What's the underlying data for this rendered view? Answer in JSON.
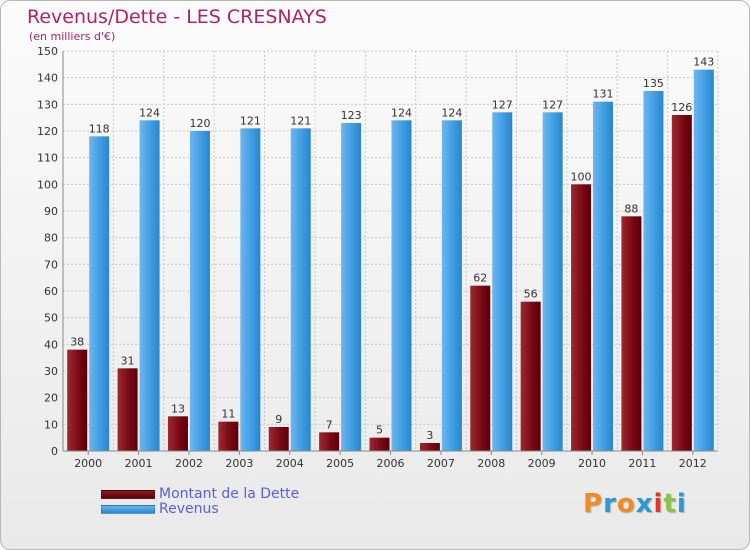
{
  "header": {
    "title": "Revenus/Dette - LES CRESNAYS",
    "subtitle": "(en milliers d'€)"
  },
  "legend": {
    "debt_label": "Montant de la Dette",
    "revenue_label": "Revenus"
  },
  "brand": {
    "letters": [
      "P",
      "r",
      "o",
      "x",
      "i",
      "t",
      "i"
    ],
    "colors": [
      "#f08a24",
      "#2a9ad6",
      "#f08a24",
      "#2a9ad6",
      "#e8332a",
      "#8bc34a",
      "#2a9ad6"
    ]
  },
  "colors": {
    "debt": "#7a0a14",
    "revenue": "#3f9de2",
    "grid": "#c8c8c8",
    "text": "#333333"
  },
  "chart_data": {
    "type": "bar",
    "title": "Revenus/Dette - LES CRESNAYS",
    "subtitle": "(en milliers d'€)",
    "xlabel": "",
    "ylabel": "",
    "ylim": [
      0,
      150
    ],
    "yticks": [
      0,
      10,
      20,
      30,
      40,
      50,
      60,
      70,
      80,
      90,
      100,
      110,
      120,
      130,
      140,
      150
    ],
    "grid": true,
    "legend_position": "bottom-left",
    "categories": [
      "2000",
      "2001",
      "2002",
      "2003",
      "2004",
      "2005",
      "2006",
      "2007",
      "2008",
      "2009",
      "2010",
      "2011",
      "2012"
    ],
    "series": [
      {
        "name": "Montant de la Dette",
        "values": [
          38,
          31,
          13,
          11,
          9,
          7,
          5,
          3,
          62,
          56,
          100,
          88,
          126
        ]
      },
      {
        "name": "Revenus",
        "values": [
          118,
          124,
          120,
          121,
          121,
          123,
          124,
          124,
          127,
          127,
          131,
          135,
          143
        ]
      }
    ]
  }
}
